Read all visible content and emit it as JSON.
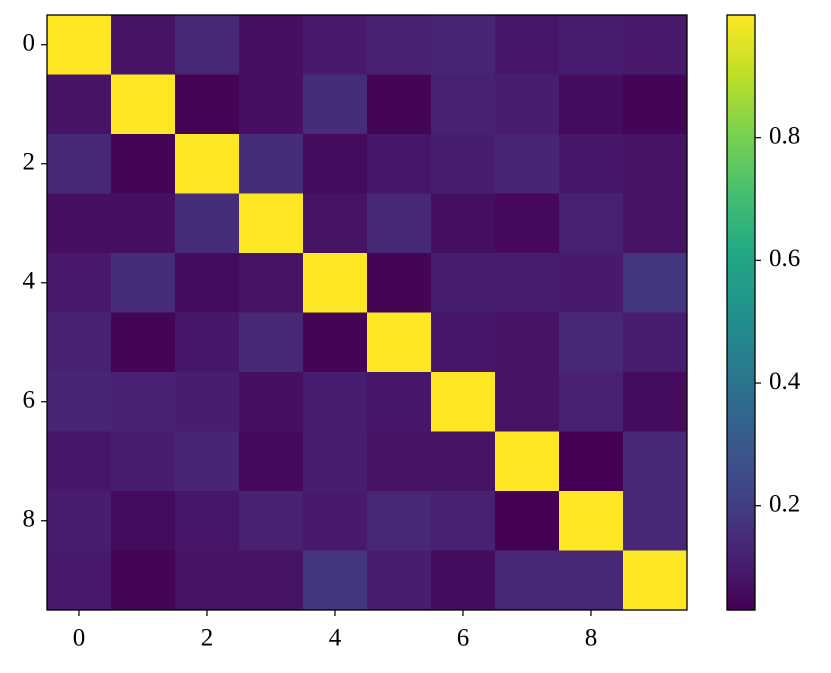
{
  "chart_data": {
    "type": "heatmap",
    "colormap": "viridis",
    "x": [
      0,
      1,
      2,
      3,
      4,
      5,
      6,
      7,
      8,
      9
    ],
    "y": [
      0,
      1,
      2,
      3,
      4,
      5,
      6,
      7,
      8,
      9
    ],
    "z": [
      [
        1.0,
        0.08,
        0.14,
        0.07,
        0.1,
        0.12,
        0.13,
        0.09,
        0.11,
        0.1
      ],
      [
        0.08,
        1.0,
        0.04,
        0.07,
        0.15,
        0.04,
        0.12,
        0.11,
        0.06,
        0.04
      ],
      [
        0.14,
        0.04,
        1.0,
        0.15,
        0.06,
        0.09,
        0.11,
        0.13,
        0.09,
        0.08
      ],
      [
        0.07,
        0.07,
        0.15,
        1.0,
        0.08,
        0.14,
        0.07,
        0.05,
        0.12,
        0.08
      ],
      [
        0.1,
        0.15,
        0.06,
        0.08,
        1.0,
        0.04,
        0.11,
        0.11,
        0.1,
        0.18
      ],
      [
        0.12,
        0.04,
        0.09,
        0.14,
        0.04,
        1.0,
        0.09,
        0.08,
        0.14,
        0.11
      ],
      [
        0.13,
        0.12,
        0.11,
        0.07,
        0.11,
        0.09,
        1.0,
        0.08,
        0.12,
        0.06
      ],
      [
        0.09,
        0.11,
        0.13,
        0.05,
        0.11,
        0.08,
        0.08,
        1.0,
        0.03,
        0.14
      ],
      [
        0.11,
        0.06,
        0.09,
        0.12,
        0.1,
        0.14,
        0.12,
        0.03,
        1.0,
        0.14
      ],
      [
        0.1,
        0.04,
        0.08,
        0.08,
        0.18,
        0.11,
        0.06,
        0.14,
        0.14,
        1.0
      ]
    ],
    "xlim": [
      -0.5,
      9.5
    ],
    "ylim": [
      9.5,
      -0.5
    ],
    "xticks": [
      0,
      2,
      4,
      6,
      8
    ],
    "yticks": [
      0,
      2,
      4,
      6,
      8
    ],
    "clim": [
      0.03,
      1.0
    ],
    "cticks": [
      0.2,
      0.4,
      0.6,
      0.8
    ]
  }
}
